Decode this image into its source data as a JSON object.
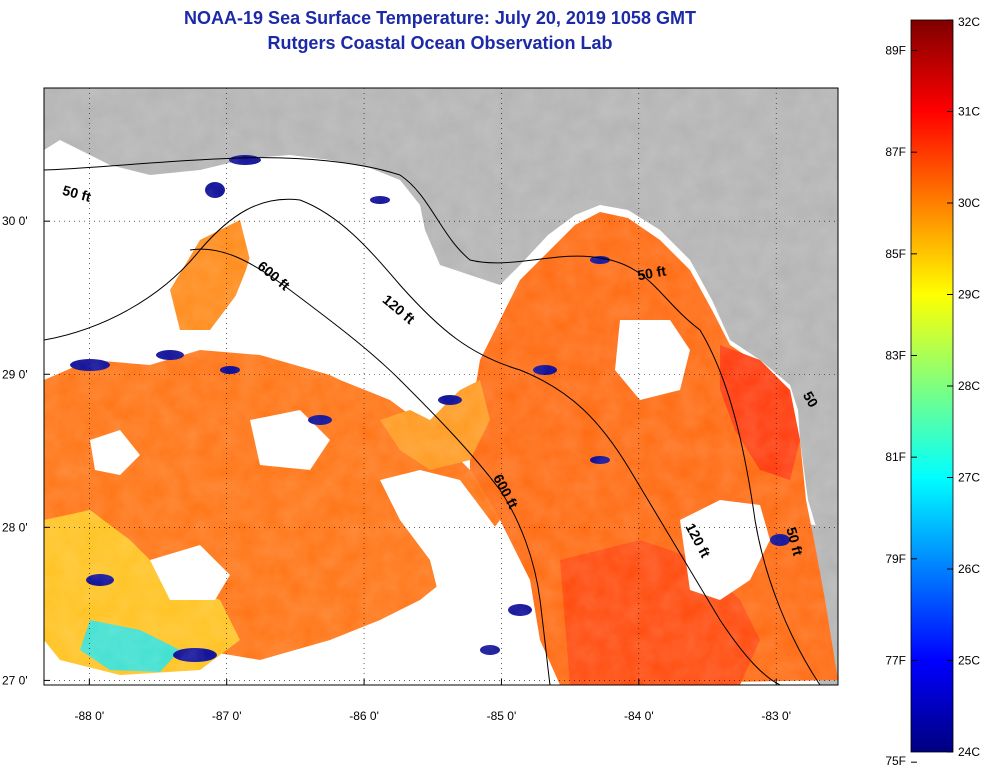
{
  "title_line1": "NOAA-19 Sea Surface Temperature:  July 20, 2019 1058 GMT",
  "title_line2": "Rutgers Coastal Ocean Observation Lab",
  "colors": {
    "land": "#b3b3b3",
    "cloud": "#ffffff",
    "title": "#1c2aa8",
    "colormap": [
      "#00007f",
      "#0000ff",
      "#007fff",
      "#00ffff",
      "#7fff7f",
      "#ffff00",
      "#ff7f00",
      "#ff0000",
      "#7f0000"
    ]
  },
  "map": {
    "lon_range": [
      -88.33,
      -82.55
    ],
    "lat_range": [
      26.97,
      30.87
    ],
    "lat_ticks": [
      {
        "value": 30,
        "label": "30 0'"
      },
      {
        "value": 29,
        "label": "29 0'"
      },
      {
        "value": 28,
        "label": "28 0'"
      },
      {
        "value": 27,
        "label": "27 0'"
      }
    ],
    "lon_ticks": [
      {
        "value": -88,
        "label": "-88 0'"
      },
      {
        "value": -87,
        "label": "-87 0'"
      },
      {
        "value": -86,
        "label": "-86 0'"
      },
      {
        "value": -85,
        "label": "-85 0'"
      },
      {
        "value": -84,
        "label": "-84 0'"
      },
      {
        "value": -83,
        "label": "-83 0'"
      }
    ],
    "contour_labels": [
      {
        "text": "50 ft",
        "lon": -88.1,
        "lat": 30.15,
        "rotate": 15
      },
      {
        "text": "600 ft",
        "lon": -86.68,
        "lat": 29.62,
        "rotate": 40
      },
      {
        "text": "120 ft",
        "lon": -85.77,
        "lat": 29.4,
        "rotate": 40
      },
      {
        "text": "600 ft",
        "lon": -85.0,
        "lat": 28.22,
        "rotate": 62
      },
      {
        "text": "120 ft",
        "lon": -83.6,
        "lat": 27.9,
        "rotate": 62
      },
      {
        "text": "50 ft",
        "lon": -83.9,
        "lat": 29.63,
        "rotate": -10
      },
      {
        "text": "50 ft",
        "lon": -82.9,
        "lat": 27.9,
        "rotate": 75
      },
      {
        "text": "50",
        "lon": -82.78,
        "lat": 28.82,
        "rotate": 60
      }
    ]
  },
  "colorbar": {
    "labels_c": [
      {
        "value": 32,
        "label": "32C"
      },
      {
        "value": 31,
        "label": "31C"
      },
      {
        "value": 30,
        "label": "30C"
      },
      {
        "value": 29,
        "label": "29C"
      },
      {
        "value": 28,
        "label": "28C"
      },
      {
        "value": 27,
        "label": "27C"
      },
      {
        "value": 26,
        "label": "26C"
      },
      {
        "value": 25,
        "label": "25C"
      },
      {
        "value": 24,
        "label": "24C"
      }
    ],
    "labels_f": [
      {
        "value": 89,
        "label": "89F"
      },
      {
        "value": 87,
        "label": "87F"
      },
      {
        "value": 85,
        "label": "85F"
      },
      {
        "value": 83,
        "label": "83F"
      },
      {
        "value": 81,
        "label": "81F"
      },
      {
        "value": 79,
        "label": "79F"
      },
      {
        "value": 77,
        "label": "77F"
      },
      {
        "value": 75,
        "label": "75F"
      }
    ]
  }
}
